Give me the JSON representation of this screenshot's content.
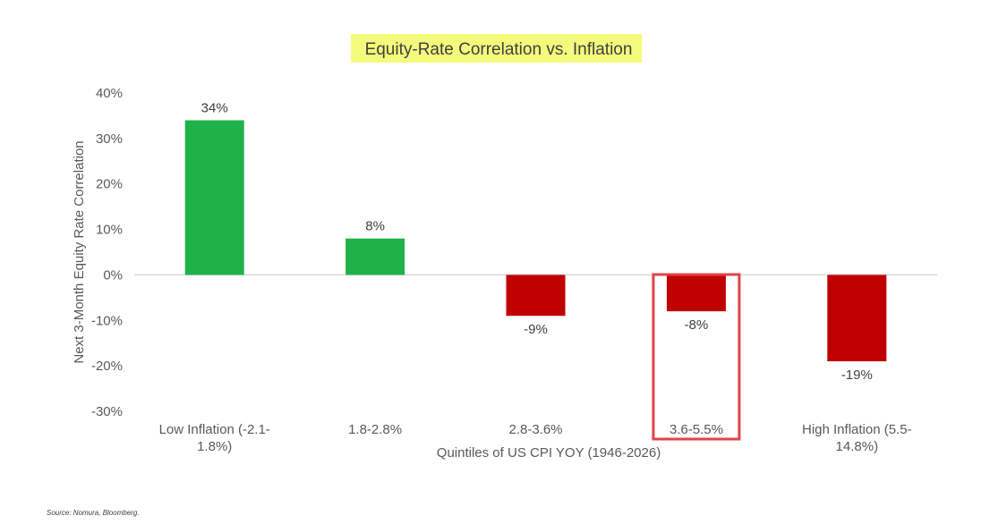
{
  "chart_data": {
    "type": "bar",
    "title": "Equity-Rate Correlation vs. Inflation",
    "xlabel": "Quintiles of US CPI YOY (1946-2026)",
    "ylabel": "Next 3-Month Equity Rate Correlation",
    "categories": [
      [
        "Low Inflation (-2.1-",
        "1.8%)"
      ],
      [
        "1.8-2.8%"
      ],
      [
        "2.8-3.6%"
      ],
      [
        "3.6-5.5%"
      ],
      [
        "High Inflation (5.5-",
        "14.8%)"
      ]
    ],
    "values": [
      34,
      8,
      -9,
      -8,
      -19
    ],
    "data_labels": [
      "34%",
      "8%",
      "-9%",
      "-8%",
      "-19%"
    ],
    "ylim": [
      -30,
      40
    ],
    "yticks": [
      40,
      30,
      20,
      10,
      0,
      -10,
      -20,
      -30
    ],
    "ytick_labels": [
      "40%",
      "30%",
      "20%",
      "10%",
      "0%",
      "-10%",
      "-20%",
      "-30%"
    ],
    "colors": {
      "positive": "#1fb24a",
      "negative": "#c00000",
      "highlight_box": "#e0434a",
      "title_highlight": "#f4fb7c",
      "zero_line": "#d9d9d9"
    },
    "highlight_category_index": 3,
    "grid": false,
    "legend": "none"
  },
  "source": "Source: Nomura, Bloomberg."
}
